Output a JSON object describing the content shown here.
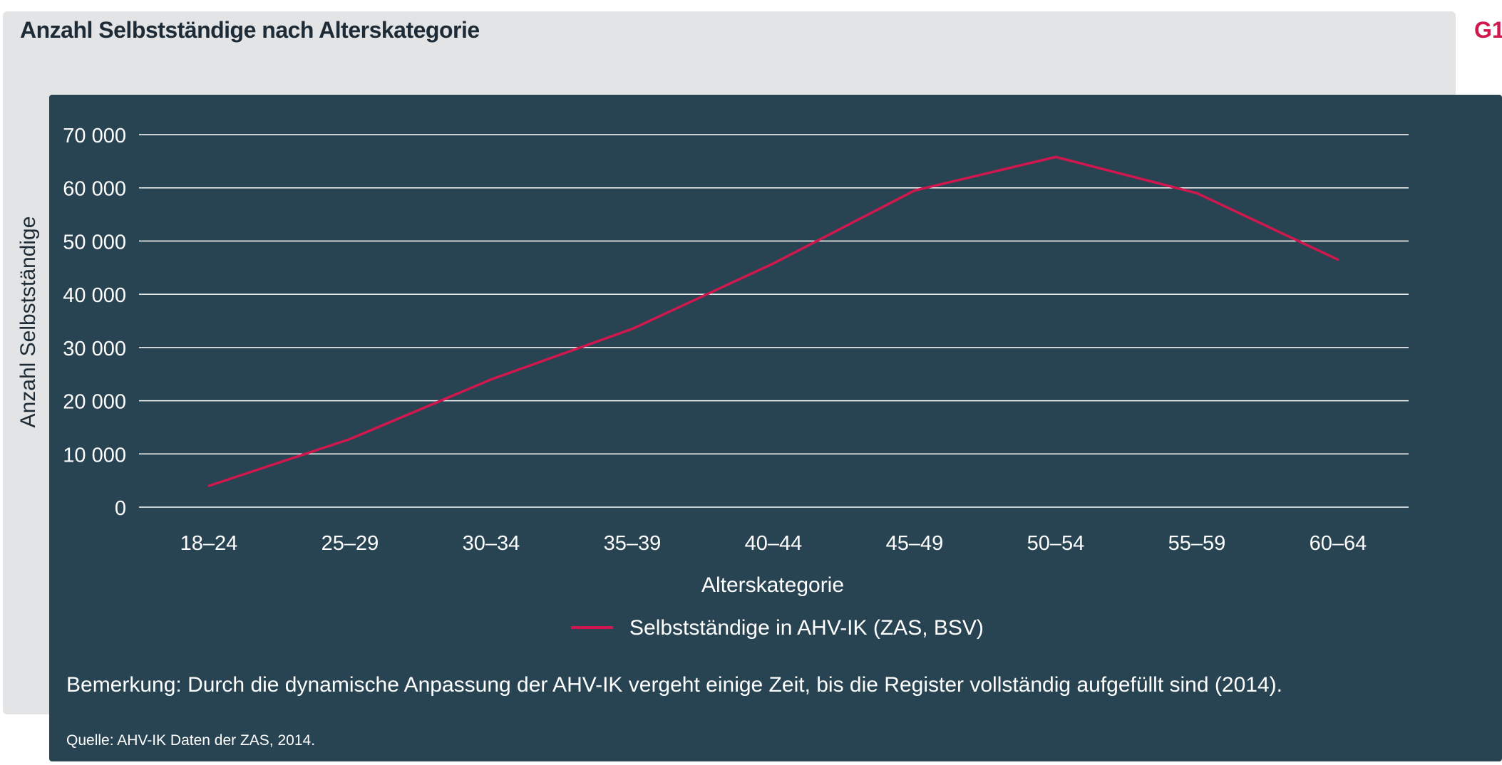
{
  "header": {
    "title": "Anzahl Selbstständige nach Alterskategorie",
    "figure_tag": "G1"
  },
  "footer": {
    "note": "Bemerkung: Durch die dynamische Anpassung der AHV-IK vergeht einige Zeit, bis die Register vollständig aufgefüllt sind (2014).",
    "source": "Quelle: AHV-IK Daten der ZAS, 2014."
  },
  "colors": {
    "page_background": "#ffffff",
    "outer_panel": "#e3e4e6",
    "chart_background": "#284452",
    "line": "#d0174e",
    "grid": "#ffffff",
    "text_light": "#ffffff",
    "title_text": "#1d2b36"
  },
  "chart_data": {
    "type": "line",
    "title": "Anzahl Selbstständige nach Alterskategorie",
    "xlabel": "Alterskategorie",
    "ylabel": "Anzahl Selbstständige",
    "categories": [
      "18–24",
      "25–29",
      "30–34",
      "35–39",
      "40–44",
      "45–49",
      "50–54",
      "55–59",
      "60–64"
    ],
    "series": [
      {
        "name": "Selbstständige in AHV-IK (ZAS, BSV)",
        "values": [
          4000,
          12800,
          24000,
          33500,
          45800,
          59500,
          65800,
          59000,
          46500
        ]
      }
    ],
    "ylim": [
      0,
      70000
    ],
    "yticks": [
      0,
      10000,
      20000,
      30000,
      40000,
      50000,
      60000,
      70000
    ],
    "ytick_labels": [
      "0",
      "10 000",
      "20 000",
      "30 000",
      "40 000",
      "50 000",
      "60 000",
      "70 000"
    ],
    "grid": "horizontal",
    "legend": "bottom-center"
  }
}
